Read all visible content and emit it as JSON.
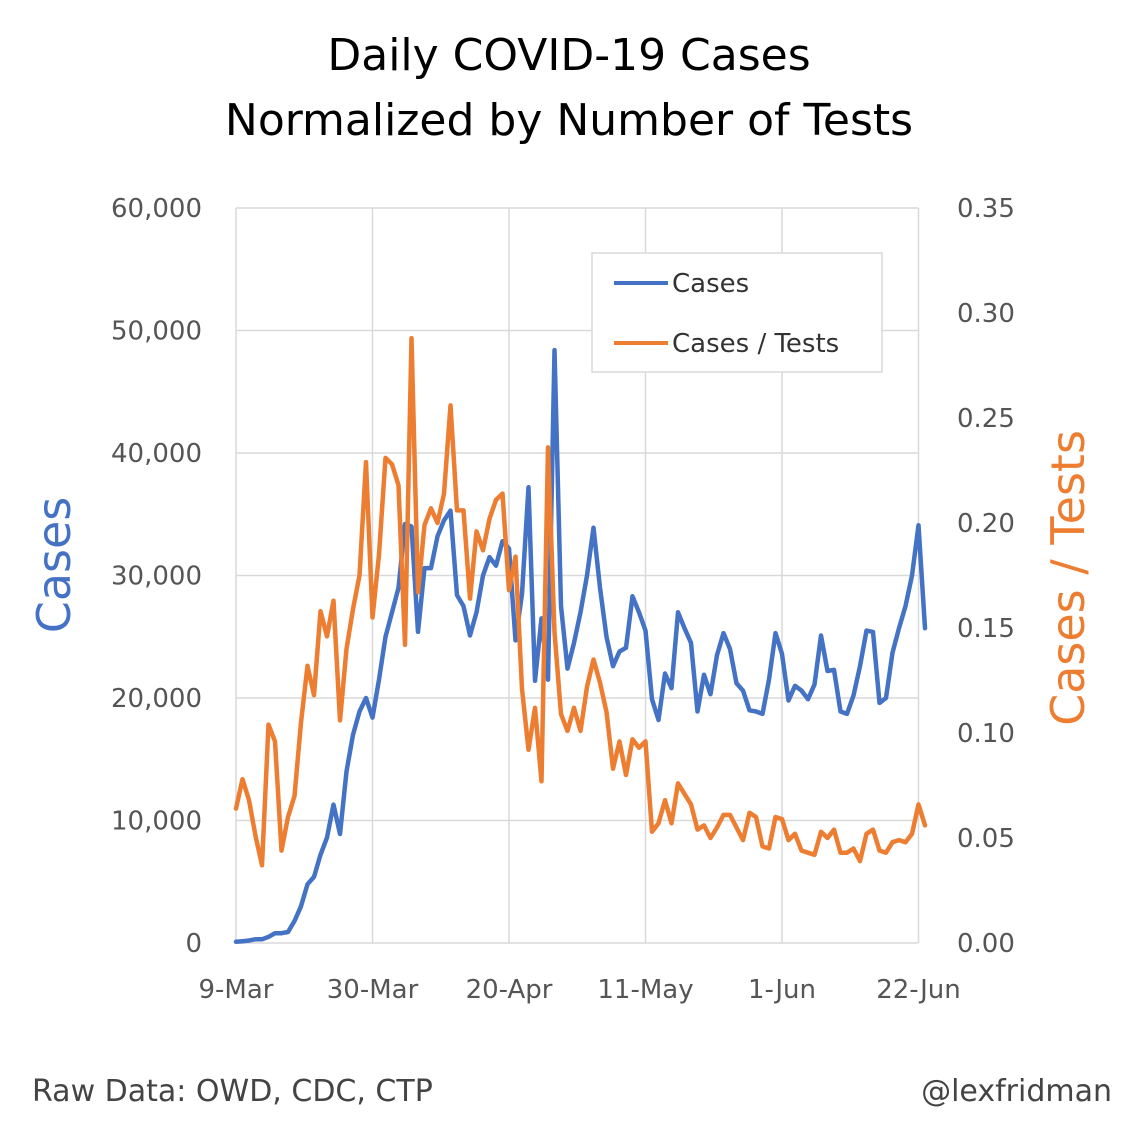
{
  "footer": {
    "source": "Raw Data: OWD, CDC, CTP",
    "handle": "@lexfridman"
  },
  "colors": {
    "cases": "#4472C4",
    "ratio": "#ED7D31",
    "grid": "#D9D9D9"
  },
  "chart_data": {
    "type": "line",
    "title": [
      "Daily COVID-19 Cases",
      "Normalized by Number of Tests"
    ],
    "xlabel": "",
    "ylabel": "Cases",
    "ylabel_right": "Cases / Tests",
    "x_tick_labels": [
      "9-Mar",
      "30-Mar",
      "20-Apr",
      "11-May",
      "1-Jun",
      "22-Jun"
    ],
    "x_tick_days": [
      0,
      21,
      42,
      63,
      84,
      105
    ],
    "y_left_ticks": [
      "0",
      "10,000",
      "20,000",
      "30,000",
      "40,000",
      "50,000",
      "60,000"
    ],
    "y_left_range": [
      0,
      60000
    ],
    "y_right_ticks": [
      "0.00",
      "0.05",
      "0.10",
      "0.15",
      "0.20",
      "0.25",
      "0.30",
      "0.35"
    ],
    "y_right_range": [
      0,
      0.35
    ],
    "grid": true,
    "legend_position": "top-right",
    "series": [
      {
        "name": "Cases",
        "axis": "left",
        "values": [
          {
            "x": "2020-03-09",
            "y": 100
          },
          {
            "x": "2020-03-10",
            "y": 150
          },
          {
            "x": "2020-03-11",
            "y": 200
          },
          {
            "x": "2020-03-12",
            "y": 300
          },
          {
            "x": "2020-03-13",
            "y": 300
          },
          {
            "x": "2020-03-14",
            "y": 500
          },
          {
            "x": "2020-03-15",
            "y": 800
          },
          {
            "x": "2020-03-16",
            "y": 800
          },
          {
            "x": "2020-03-17",
            "y": 900
          },
          {
            "x": "2020-03-18",
            "y": 1800
          },
          {
            "x": "2020-03-19",
            "y": 3000
          },
          {
            "x": "2020-03-20",
            "y": 4800
          },
          {
            "x": "2020-03-21",
            "y": 5400
          },
          {
            "x": "2020-03-22",
            "y": 7200
          },
          {
            "x": "2020-03-23",
            "y": 8600
          },
          {
            "x": "2020-03-24",
            "y": 11300
          },
          {
            "x": "2020-03-25",
            "y": 8900
          },
          {
            "x": "2020-03-26",
            "y": 14000
          },
          {
            "x": "2020-03-27",
            "y": 17000
          },
          {
            "x": "2020-03-28",
            "y": 18900
          },
          {
            "x": "2020-03-29",
            "y": 20000
          },
          {
            "x": "2020-03-30",
            "y": 18400
          },
          {
            "x": "2020-03-31",
            "y": 21500
          },
          {
            "x": "2020-04-01",
            "y": 25000
          },
          {
            "x": "2020-04-02",
            "y": 27000
          },
          {
            "x": "2020-04-03",
            "y": 29000
          },
          {
            "x": "2020-04-04",
            "y": 34200
          },
          {
            "x": "2020-04-05",
            "y": 34000
          },
          {
            "x": "2020-04-06",
            "y": 25400
          },
          {
            "x": "2020-04-07",
            "y": 30600
          },
          {
            "x": "2020-04-08",
            "y": 30600
          },
          {
            "x": "2020-04-09",
            "y": 33200
          },
          {
            "x": "2020-04-10",
            "y": 34500
          },
          {
            "x": "2020-04-11",
            "y": 35300
          },
          {
            "x": "2020-04-12",
            "y": 28400
          },
          {
            "x": "2020-04-13",
            "y": 27500
          },
          {
            "x": "2020-04-14",
            "y": 25100
          },
          {
            "x": "2020-04-15",
            "y": 27000
          },
          {
            "x": "2020-04-16",
            "y": 30000
          },
          {
            "x": "2020-04-17",
            "y": 31500
          },
          {
            "x": "2020-04-18",
            "y": 30800
          },
          {
            "x": "2020-04-19",
            "y": 32800
          },
          {
            "x": "2020-04-20",
            "y": 32200
          },
          {
            "x": "2020-04-21",
            "y": 24700
          },
          {
            "x": "2020-04-22",
            "y": 28500
          },
          {
            "x": "2020-04-23",
            "y": 37200
          },
          {
            "x": "2020-04-24",
            "y": 21400
          },
          {
            "x": "2020-04-25",
            "y": 26500
          },
          {
            "x": "2020-04-26",
            "y": 21500
          },
          {
            "x": "2020-04-27",
            "y": 48400
          },
          {
            "x": "2020-04-28",
            "y": 27500
          },
          {
            "x": "2020-04-29",
            "y": 22400
          },
          {
            "x": "2020-04-30",
            "y": 24500
          },
          {
            "x": "2020-05-01",
            "y": 27000
          },
          {
            "x": "2020-05-02",
            "y": 30000
          },
          {
            "x": "2020-05-03",
            "y": 33900
          },
          {
            "x": "2020-05-04",
            "y": 29000
          },
          {
            "x": "2020-05-05",
            "y": 25000
          },
          {
            "x": "2020-05-06",
            "y": 22600
          },
          {
            "x": "2020-05-07",
            "y": 23800
          },
          {
            "x": "2020-05-08",
            "y": 24100
          },
          {
            "x": "2020-05-09",
            "y": 28300
          },
          {
            "x": "2020-05-10",
            "y": 27000
          },
          {
            "x": "2020-05-11",
            "y": 25500
          },
          {
            "x": "2020-05-12",
            "y": 19900
          },
          {
            "x": "2020-05-13",
            "y": 18200
          },
          {
            "x": "2020-05-14",
            "y": 22000
          },
          {
            "x": "2020-05-15",
            "y": 20800
          },
          {
            "x": "2020-05-16",
            "y": 27000
          },
          {
            "x": "2020-05-17",
            "y": 25700
          },
          {
            "x": "2020-05-18",
            "y": 24500
          },
          {
            "x": "2020-05-19",
            "y": 18900
          },
          {
            "x": "2020-05-20",
            "y": 21900
          },
          {
            "x": "2020-05-21",
            "y": 20300
          },
          {
            "x": "2020-05-22",
            "y": 23500
          },
          {
            "x": "2020-05-23",
            "y": 25300
          },
          {
            "x": "2020-05-24",
            "y": 24000
          },
          {
            "x": "2020-05-25",
            "y": 21200
          },
          {
            "x": "2020-05-26",
            "y": 20600
          },
          {
            "x": "2020-05-27",
            "y": 19000
          },
          {
            "x": "2020-05-28",
            "y": 18900
          },
          {
            "x": "2020-05-29",
            "y": 18700
          },
          {
            "x": "2020-05-30",
            "y": 21500
          },
          {
            "x": "2020-05-31",
            "y": 25300
          },
          {
            "x": "2020-06-01",
            "y": 23600
          },
          {
            "x": "2020-06-02",
            "y": 19800
          },
          {
            "x": "2020-06-03",
            "y": 21000
          },
          {
            "x": "2020-06-04",
            "y": 20600
          },
          {
            "x": "2020-06-05",
            "y": 19900
          },
          {
            "x": "2020-06-06",
            "y": 21100
          },
          {
            "x": "2020-06-07",
            "y": 25100
          },
          {
            "x": "2020-06-08",
            "y": 22200
          },
          {
            "x": "2020-06-09",
            "y": 22300
          },
          {
            "x": "2020-06-10",
            "y": 18900
          },
          {
            "x": "2020-06-11",
            "y": 18700
          },
          {
            "x": "2020-06-12",
            "y": 20200
          },
          {
            "x": "2020-06-13",
            "y": 22600
          },
          {
            "x": "2020-06-14",
            "y": 25500
          },
          {
            "x": "2020-06-15",
            "y": 25400
          },
          {
            "x": "2020-06-16",
            "y": 19600
          },
          {
            "x": "2020-06-17",
            "y": 20000
          },
          {
            "x": "2020-06-18",
            "y": 23700
          },
          {
            "x": "2020-06-19",
            "y": 25700
          },
          {
            "x": "2020-06-20",
            "y": 27500
          },
          {
            "x": "2020-06-21",
            "y": 30000
          },
          {
            "x": "2020-06-22",
            "y": 34100
          },
          {
            "x": "2020-06-23",
            "y": 25700
          }
        ]
      },
      {
        "name": "Cases / Tests",
        "axis": "right",
        "values": [
          {
            "x": "2020-03-09",
            "y": 0.064
          },
          {
            "x": "2020-03-10",
            "y": 0.078
          },
          {
            "x": "2020-03-11",
            "y": 0.068
          },
          {
            "x": "2020-03-12",
            "y": 0.051
          },
          {
            "x": "2020-03-13",
            "y": 0.037
          },
          {
            "x": "2020-03-14",
            "y": 0.104
          },
          {
            "x": "2020-03-15",
            "y": 0.096
          },
          {
            "x": "2020-03-16",
            "y": 0.044
          },
          {
            "x": "2020-03-17",
            "y": 0.06
          },
          {
            "x": "2020-03-18",
            "y": 0.07
          },
          {
            "x": "2020-03-19",
            "y": 0.105
          },
          {
            "x": "2020-03-20",
            "y": 0.132
          },
          {
            "x": "2020-03-21",
            "y": 0.118
          },
          {
            "x": "2020-03-22",
            "y": 0.158
          },
          {
            "x": "2020-03-23",
            "y": 0.146
          },
          {
            "x": "2020-03-24",
            "y": 0.163
          },
          {
            "x": "2020-03-25",
            "y": 0.106
          },
          {
            "x": "2020-03-26",
            "y": 0.14
          },
          {
            "x": "2020-03-27",
            "y": 0.159
          },
          {
            "x": "2020-03-28",
            "y": 0.175
          },
          {
            "x": "2020-03-29",
            "y": 0.229
          },
          {
            "x": "2020-03-30",
            "y": 0.155
          },
          {
            "x": "2020-03-31",
            "y": 0.185
          },
          {
            "x": "2020-04-01",
            "y": 0.231
          },
          {
            "x": "2020-04-02",
            "y": 0.228
          },
          {
            "x": "2020-04-03",
            "y": 0.218
          },
          {
            "x": "2020-04-04",
            "y": 0.142
          },
          {
            "x": "2020-04-05",
            "y": 0.288
          },
          {
            "x": "2020-04-06",
            "y": 0.167
          },
          {
            "x": "2020-04-07",
            "y": 0.199
          },
          {
            "x": "2020-04-08",
            "y": 0.207
          },
          {
            "x": "2020-04-09",
            "y": 0.2
          },
          {
            "x": "2020-04-10",
            "y": 0.214
          },
          {
            "x": "2020-04-11",
            "y": 0.256
          },
          {
            "x": "2020-04-12",
            "y": 0.206
          },
          {
            "x": "2020-04-13",
            "y": 0.206
          },
          {
            "x": "2020-04-14",
            "y": 0.164
          },
          {
            "x": "2020-04-15",
            "y": 0.196
          },
          {
            "x": "2020-04-16",
            "y": 0.187
          },
          {
            "x": "2020-04-17",
            "y": 0.202
          },
          {
            "x": "2020-04-18",
            "y": 0.211
          },
          {
            "x": "2020-04-19",
            "y": 0.214
          },
          {
            "x": "2020-04-20",
            "y": 0.168
          },
          {
            "x": "2020-04-21",
            "y": 0.184
          },
          {
            "x": "2020-04-22",
            "y": 0.121
          },
          {
            "x": "2020-04-23",
            "y": 0.092
          },
          {
            "x": "2020-04-24",
            "y": 0.112
          },
          {
            "x": "2020-04-25",
            "y": 0.077
          },
          {
            "x": "2020-04-26",
            "y": 0.236
          },
          {
            "x": "2020-04-27",
            "y": 0.148
          },
          {
            "x": "2020-04-28",
            "y": 0.109
          },
          {
            "x": "2020-04-29",
            "y": 0.101
          },
          {
            "x": "2020-04-30",
            "y": 0.112
          },
          {
            "x": "2020-05-01",
            "y": 0.101
          },
          {
            "x": "2020-05-02",
            "y": 0.122
          },
          {
            "x": "2020-05-03",
            "y": 0.135
          },
          {
            "x": "2020-05-04",
            "y": 0.124
          },
          {
            "x": "2020-05-05",
            "y": 0.11
          },
          {
            "x": "2020-05-06",
            "y": 0.083
          },
          {
            "x": "2020-05-07",
            "y": 0.096
          },
          {
            "x": "2020-05-08",
            "y": 0.08
          },
          {
            "x": "2020-05-09",
            "y": 0.097
          },
          {
            "x": "2020-05-10",
            "y": 0.093
          },
          {
            "x": "2020-05-11",
            "y": 0.096
          },
          {
            "x": "2020-05-12",
            "y": 0.053
          },
          {
            "x": "2020-05-13",
            "y": 0.057
          },
          {
            "x": "2020-05-14",
            "y": 0.068
          },
          {
            "x": "2020-05-15",
            "y": 0.057
          },
          {
            "x": "2020-05-16",
            "y": 0.076
          },
          {
            "x": "2020-05-17",
            "y": 0.071
          },
          {
            "x": "2020-05-18",
            "y": 0.066
          },
          {
            "x": "2020-05-19",
            "y": 0.054
          },
          {
            "x": "2020-05-20",
            "y": 0.056
          },
          {
            "x": "2020-05-21",
            "y": 0.05
          },
          {
            "x": "2020-05-22",
            "y": 0.055
          },
          {
            "x": "2020-05-23",
            "y": 0.061
          },
          {
            "x": "2020-05-24",
            "y": 0.061
          },
          {
            "x": "2020-05-25",
            "y": 0.055
          },
          {
            "x": "2020-05-26",
            "y": 0.049
          },
          {
            "x": "2020-05-27",
            "y": 0.062
          },
          {
            "x": "2020-05-28",
            "y": 0.06
          },
          {
            "x": "2020-05-29",
            "y": 0.046
          },
          {
            "x": "2020-05-30",
            "y": 0.045
          },
          {
            "x": "2020-05-31",
            "y": 0.06
          },
          {
            "x": "2020-06-01",
            "y": 0.059
          },
          {
            "x": "2020-06-02",
            "y": 0.049
          },
          {
            "x": "2020-06-03",
            "y": 0.052
          },
          {
            "x": "2020-06-04",
            "y": 0.044
          },
          {
            "x": "2020-06-05",
            "y": 0.043
          },
          {
            "x": "2020-06-06",
            "y": 0.042
          },
          {
            "x": "2020-06-07",
            "y": 0.053
          },
          {
            "x": "2020-06-08",
            "y": 0.05
          },
          {
            "x": "2020-06-09",
            "y": 0.054
          },
          {
            "x": "2020-06-10",
            "y": 0.043
          },
          {
            "x": "2020-06-11",
            "y": 0.043
          },
          {
            "x": "2020-06-12",
            "y": 0.045
          },
          {
            "x": "2020-06-13",
            "y": 0.039
          },
          {
            "x": "2020-06-14",
            "y": 0.052
          },
          {
            "x": "2020-06-15",
            "y": 0.054
          },
          {
            "x": "2020-06-16",
            "y": 0.044
          },
          {
            "x": "2020-06-17",
            "y": 0.043
          },
          {
            "x": "2020-06-18",
            "y": 0.048
          },
          {
            "x": "2020-06-19",
            "y": 0.049
          },
          {
            "x": "2020-06-20",
            "y": 0.048
          },
          {
            "x": "2020-06-21",
            "y": 0.052
          },
          {
            "x": "2020-06-22",
            "y": 0.066
          },
          {
            "x": "2020-06-23",
            "y": 0.056
          }
        ]
      }
    ]
  }
}
